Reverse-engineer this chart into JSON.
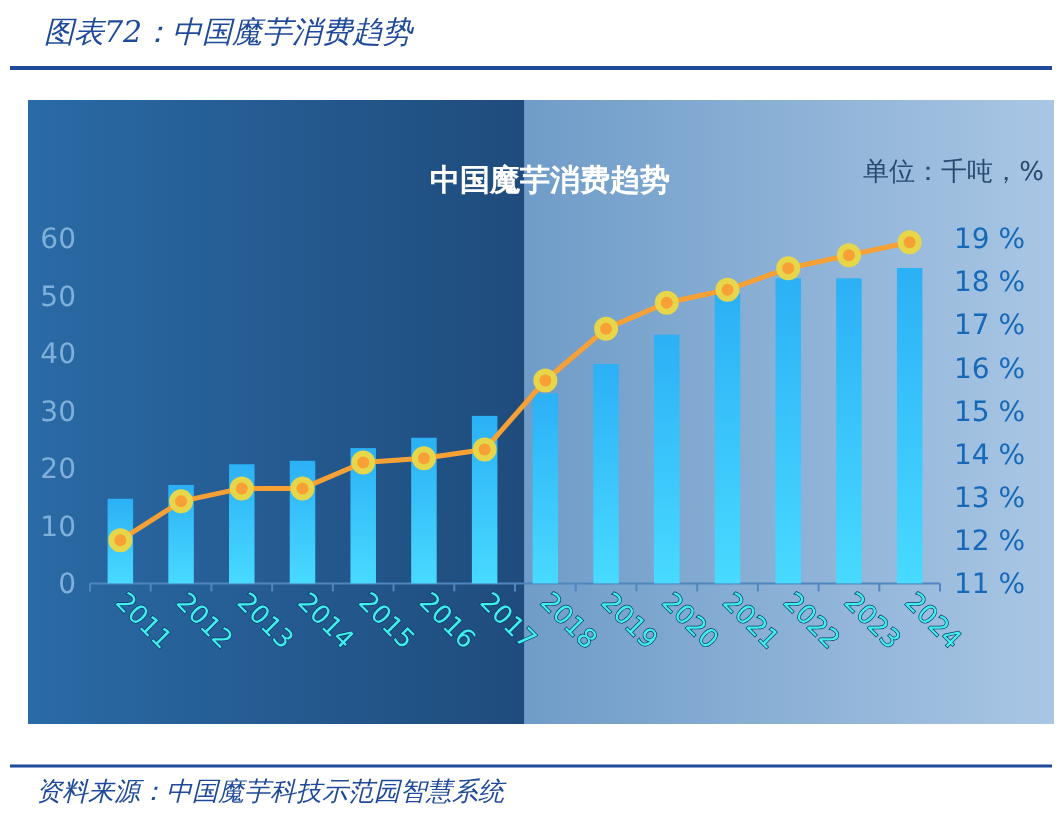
{
  "chart_data": {
    "type": "bar",
    "title": "图表72：中国魔芋消费趋势",
    "subtitle": "中国魔芋消费趋势",
    "categories": [
      "2011",
      "2012",
      "2013",
      "2014",
      "2015",
      "2016",
      "2017",
      "2018",
      "2019",
      "2020",
      "2021",
      "2022",
      "2023",
      "2024"
    ],
    "series": [
      {
        "color": "#2cb0f6",
        "values": [
          14.7,
          17.1,
          20.7,
          21.3,
          23.5,
          25.3,
          29.1,
          33.0,
          38.1,
          43.2,
          50.3,
          53.0,
          53.0,
          54.8
        ]
      },
      {
        "type": "line",
        "axis": "y2",
        "color": "#f7a035",
        "values": [
          12.0,
          12.9,
          13.2,
          13.2,
          13.8,
          13.9,
          14.1,
          15.7,
          16.9,
          17.5,
          17.8,
          18.3,
          18.6,
          18.9
        ]
      }
    ],
    "ylim": [
      0,
      60
    ],
    "yticks": [
      0,
      10,
      20,
      30,
      40,
      50,
      60
    ],
    "y2lim": [
      11,
      19
    ],
    "y2ticks": [
      {
        "value": 11,
        "label": "11 %"
      },
      {
        "value": 12,
        "label": "12 %"
      },
      {
        "value": 13,
        "label": "13 %"
      },
      {
        "value": 14,
        "label": "14 %"
      },
      {
        "value": 15,
        "label": "15 %"
      },
      {
        "value": 16,
        "label": "16 %"
      },
      {
        "value": 17,
        "label": "17 %"
      },
      {
        "value": 18,
        "label": "18 %"
      },
      {
        "value": 19,
        "label": "19 %"
      }
    ],
    "grid": false,
    "marker": "circle",
    "annotations": [
      "单位：千吨，%",
      "资料来源：中国魔芋科技示范园智慧系统"
    ]
  }
}
